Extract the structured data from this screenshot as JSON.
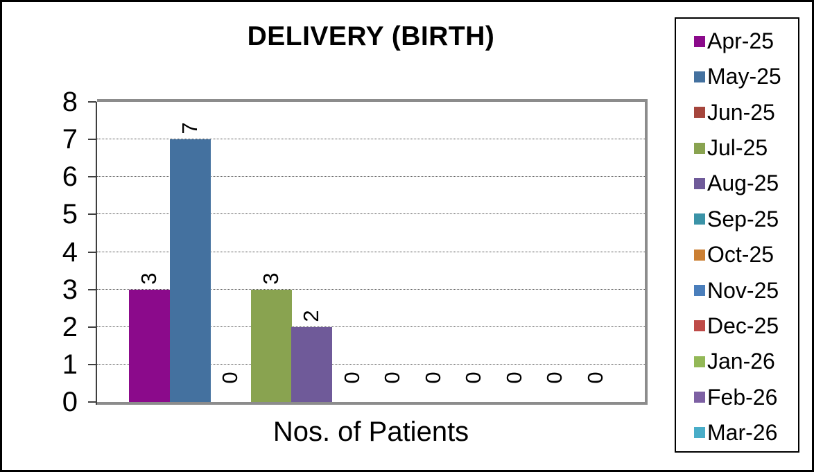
{
  "chart_data": {
    "type": "bar",
    "title": "DELIVERY (BIRTH)",
    "xlabel": "Nos. of Patients",
    "ylabel": "",
    "ylim": [
      0,
      8
    ],
    "ytick_interval": 1,
    "grid": "horizontal-dotted",
    "legend_position": "right",
    "categories": [
      "Apr-25",
      "May-25",
      "Jun-25",
      "Jul-25",
      "Aug-25",
      "Sep-25",
      "Oct-25",
      "Nov-25",
      "Dec-25",
      "Jan-26",
      "Feb-26",
      "Mar-26"
    ],
    "values": [
      3,
      7,
      0,
      3,
      2,
      0,
      0,
      0,
      0,
      0,
      0,
      0
    ],
    "series_colors": [
      "#8B0A8B",
      "#44719F",
      "#A5453C",
      "#89A350",
      "#6F5A99",
      "#3B93A7",
      "#CB7F33",
      "#4A7EBB",
      "#BE4B48",
      "#93B857",
      "#7D60A3",
      "#49ADC8"
    ]
  },
  "styles": {
    "plot_border_color": "#8C8C8C",
    "axis_color": "#3F3F3F",
    "gridline_color": "#4D4D4D",
    "text_color": "#000000",
    "frame_color": "#000000",
    "background": "#FFFFFF"
  }
}
